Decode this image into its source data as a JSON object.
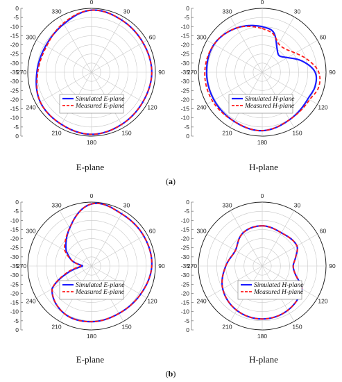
{
  "figure": {
    "panel_labels": [
      {
        "open": "(",
        "letter": "a",
        "close": ")"
      },
      {
        "open": "(",
        "letter": "b",
        "close": ")"
      }
    ]
  },
  "chart_data": [
    {
      "type": "polar",
      "caption": "E-plane",
      "angle_ticks": [
        "0",
        "30",
        "60",
        "90",
        "120",
        "150",
        "180",
        "210",
        "240",
        "270",
        "300",
        "330"
      ],
      "radial_ticks": [
        "0",
        "-5",
        "-10",
        "-15",
        "-20",
        "-25",
        "-30",
        "-35",
        "-30",
        "-25",
        "-20",
        "-15",
        "-10",
        "-5",
        "0"
      ],
      "rlim": [
        -35,
        0
      ],
      "legend": "center-left",
      "theta_deg": [
        0,
        30,
        60,
        90,
        120,
        150,
        180,
        210,
        240,
        270,
        300,
        330
      ],
      "series": [
        {
          "name": "Simulated E-plane",
          "color": "#1a1aff",
          "style": "solid",
          "values": [
            -1,
            -2,
            -2.5,
            -2,
            -2.5,
            -2,
            -1,
            -2,
            -2.5,
            -5,
            -6,
            -4.5
          ]
        },
        {
          "name": "Measured E-plane",
          "color": "#ff1a1a",
          "style": "dashed",
          "values": [
            -1,
            -2,
            -2.5,
            -2,
            -2.5,
            -2,
            -1,
            -2,
            -2.5,
            -5.5,
            -6.5,
            -4
          ]
        }
      ]
    },
    {
      "type": "polar",
      "caption": "H-plane",
      "angle_ticks": [
        "0",
        "30",
        "60",
        "90",
        "120",
        "150",
        "180",
        "210",
        "240",
        "270",
        "300",
        "330"
      ],
      "radial_ticks": [
        "0",
        "-5",
        "-10",
        "-15",
        "-20",
        "-25",
        "-30",
        "-35",
        "-30",
        "-25",
        "-20",
        "-15",
        "-10",
        "-5",
        "0"
      ],
      "rlim": [
        -35,
        0
      ],
      "legend": "upper-center",
      "theta_deg": [
        0,
        15,
        30,
        45,
        60,
        75,
        90,
        105,
        120,
        150,
        180,
        210,
        240,
        270,
        300,
        330
      ],
      "series": [
        {
          "name": "Simulated H-plane",
          "color": "#1a1aff",
          "style": "solid",
          "values": [
            -10,
            -12,
            -19,
            -22,
            -19,
            -12,
            -6,
            -5,
            -6,
            -5,
            -3,
            -4,
            -4.5,
            -4.5,
            -4.5,
            -7
          ]
        },
        {
          "name": "Measured H-plane",
          "color": "#ff1a1a",
          "style": "dashed",
          "values": [
            -11,
            -13,
            -17,
            -17,
            -14,
            -9,
            -4,
            -3,
            -5,
            -5,
            -3,
            -4,
            -3.5,
            -3.5,
            -4.5,
            -7
          ]
        }
      ]
    },
    {
      "type": "polar",
      "caption": "E-plane",
      "angle_ticks": [
        "0",
        "30",
        "60",
        "90",
        "120",
        "150",
        "180",
        "210",
        "240",
        "270",
        "300",
        "330"
      ],
      "radial_ticks": [
        "0",
        "-5",
        "-10",
        "-15",
        "-20",
        "-25",
        "-30",
        "-35",
        "-30",
        "-25",
        "-20",
        "-15",
        "-10",
        "-5",
        "0"
      ],
      "rlim": [
        -35,
        0
      ],
      "legend": "lower-left",
      "theta_deg": [
        0,
        30,
        60,
        90,
        120,
        150,
        180,
        210,
        240,
        255,
        270,
        285,
        300,
        330
      ],
      "series": [
        {
          "name": "Simulated E-plane",
          "color": "#1a1aff",
          "style": "solid",
          "values": [
            -1,
            -2,
            -2,
            -2,
            -4,
            -5,
            -4.5,
            -5,
            -10,
            -22,
            -30,
            -24,
            -19,
            -11
          ]
        },
        {
          "name": "Measured E-plane",
          "color": "#ff1a1a",
          "style": "dashed",
          "values": [
            -1,
            -2,
            -2,
            -2,
            -4,
            -5,
            -4.5,
            -5,
            -10,
            -21,
            -29,
            -24,
            -18,
            -11
          ]
        }
      ]
    },
    {
      "type": "polar",
      "caption": "H-plane",
      "angle_ticks": [
        "0",
        "30",
        "60",
        "90",
        "120",
        "150",
        "180",
        "210",
        "240",
        "270",
        "300",
        "330"
      ],
      "radial_ticks": [
        "0",
        "-5",
        "-10",
        "-15",
        "-20",
        "-25",
        "-30",
        "-35",
        "-30",
        "-25",
        "-20",
        "-15",
        "-10",
        "-5",
        "0"
      ],
      "rlim": [
        -35,
        0
      ],
      "legend": "lower-right",
      "theta_deg": [
        0,
        30,
        60,
        75,
        90,
        105,
        120,
        150,
        180,
        210,
        240,
        270,
        300,
        330
      ],
      "series": [
        {
          "name": "Simulated H-plane",
          "color": "#1a1aff",
          "style": "solid",
          "values": [
            -13,
            -14,
            -13,
            -16,
            -18,
            -16,
            -10,
            -7,
            -6,
            -7,
            -10,
            -15,
            -18,
            -14
          ]
        },
        {
          "name": "Measured H-plane",
          "color": "#ff1a1a",
          "style": "dashed",
          "values": [
            -13,
            -14,
            -13,
            -16,
            -18,
            -16,
            -10,
            -7,
            -6,
            -7,
            -10,
            -15,
            -18,
            -14
          ]
        }
      ]
    }
  ]
}
